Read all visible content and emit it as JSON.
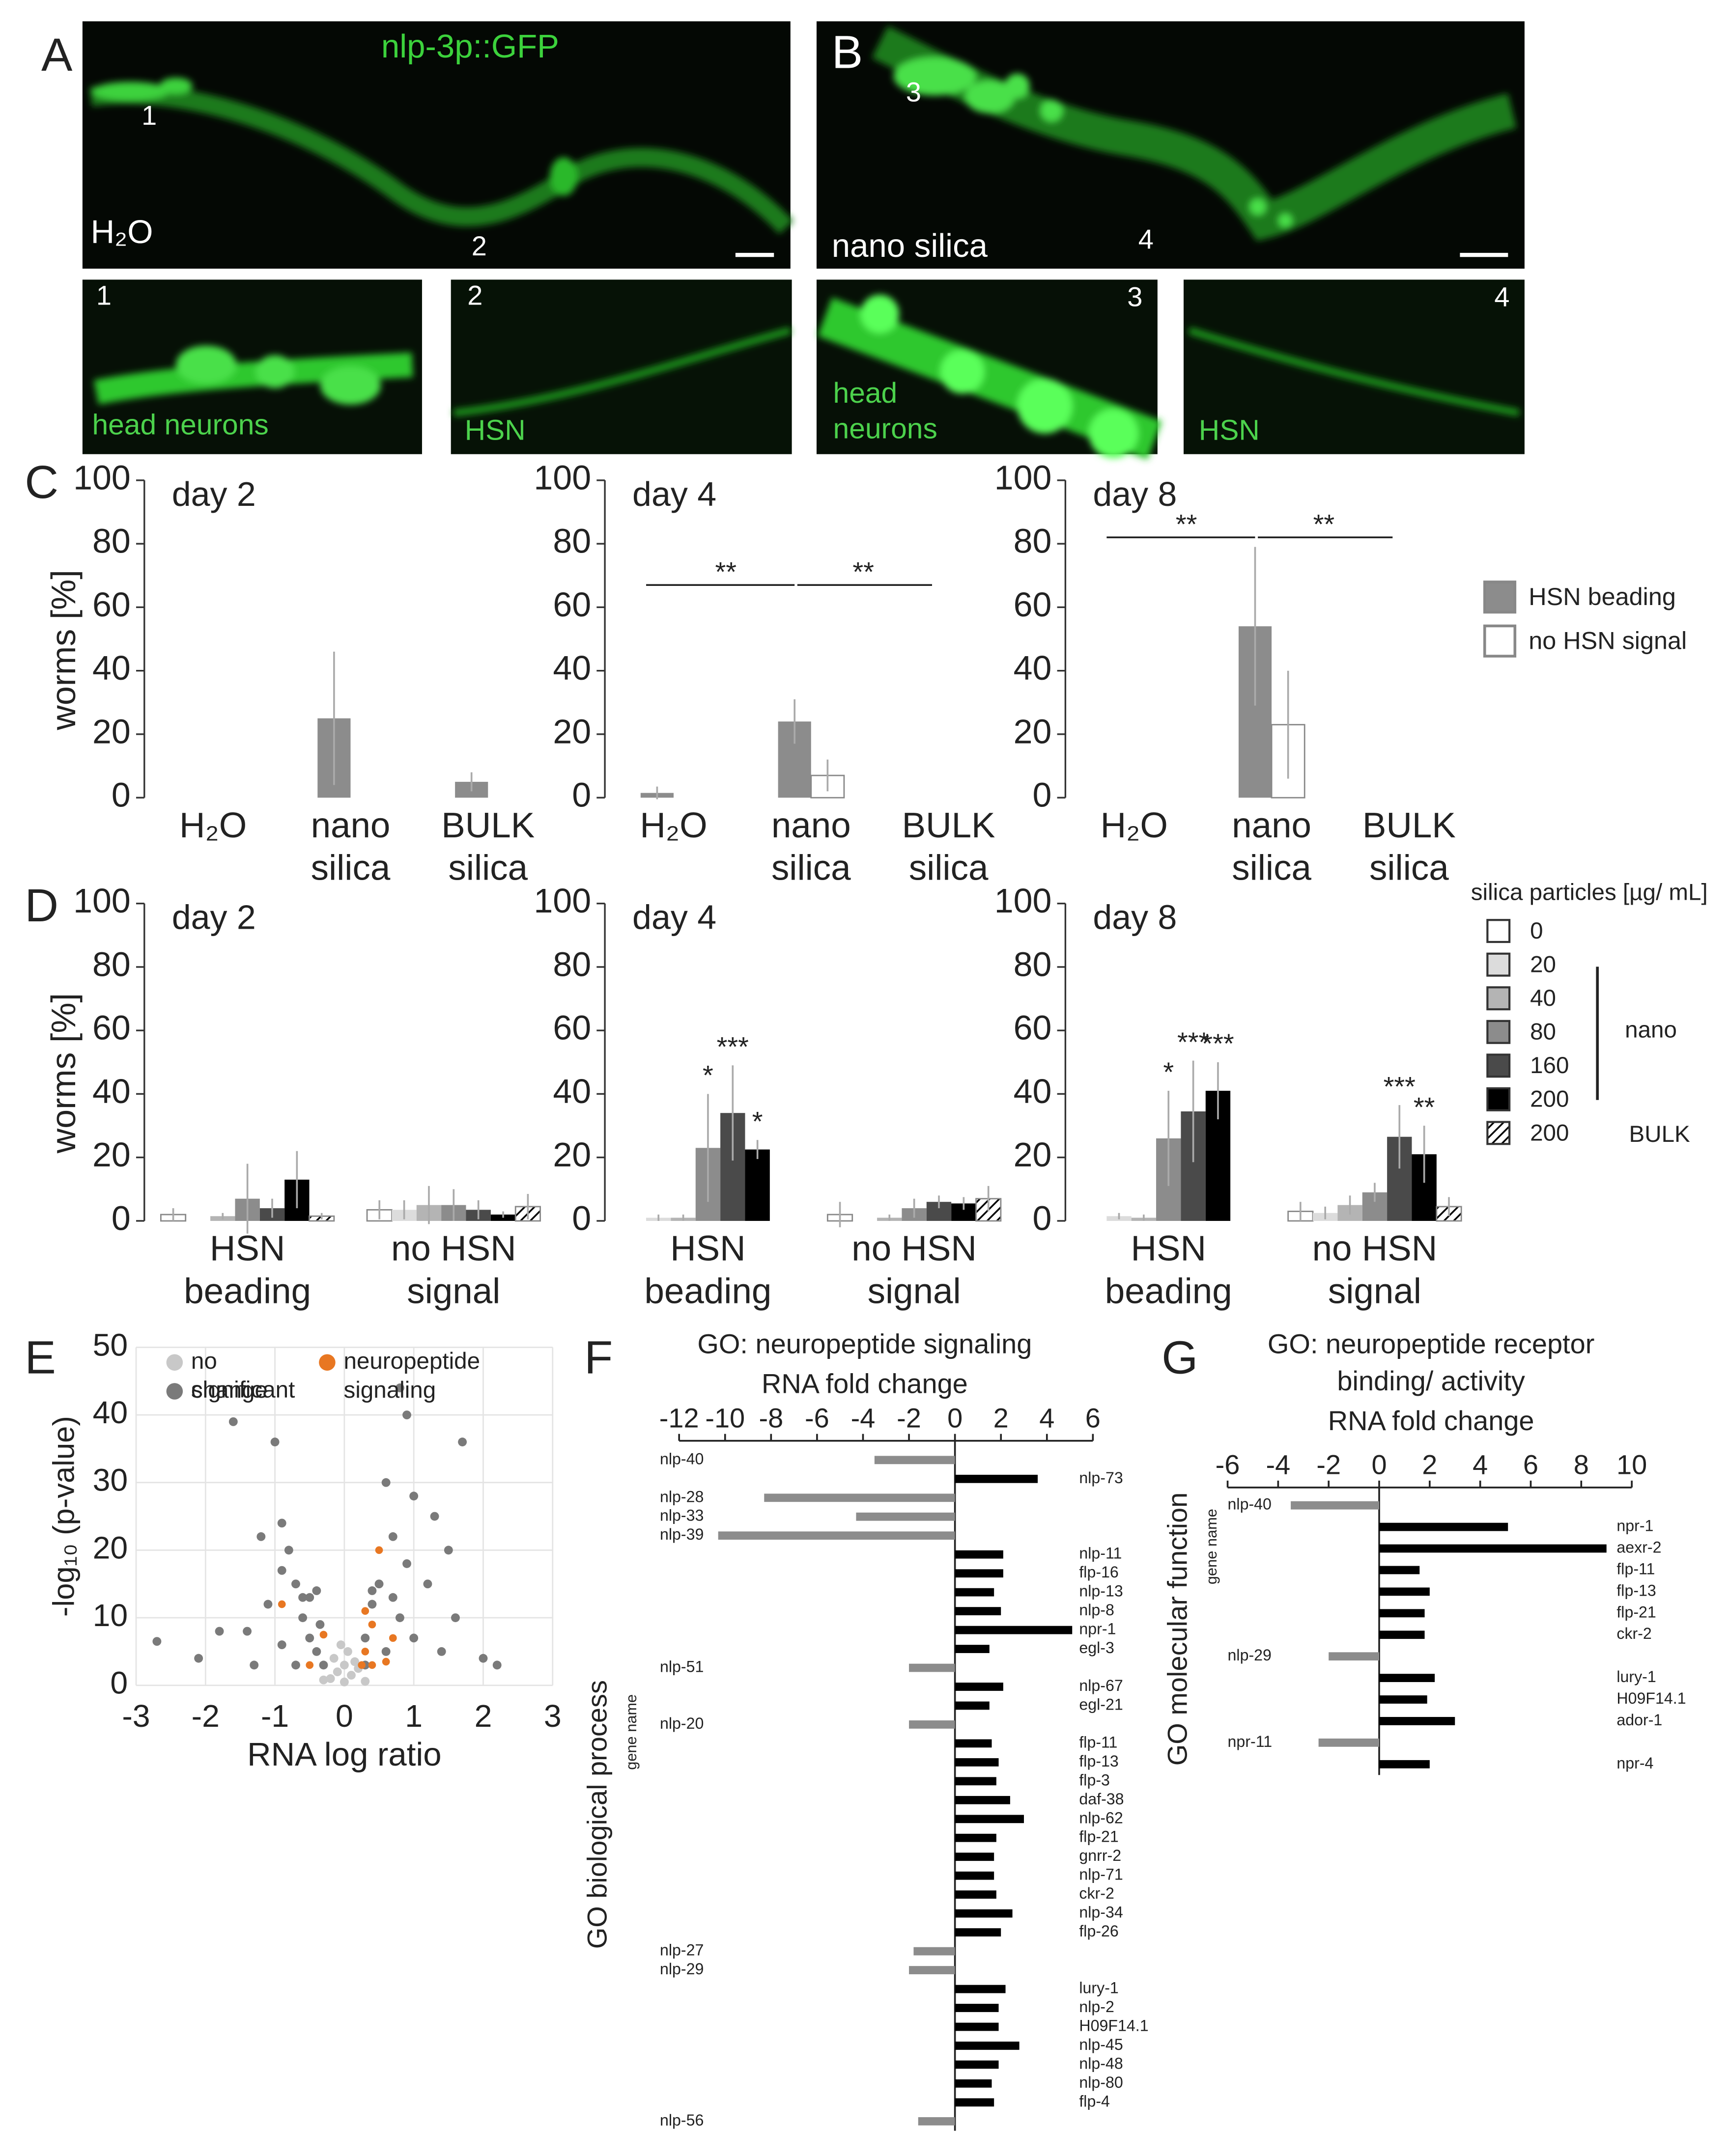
{
  "figure_panels": [
    {
      "label": "A",
      "caption": "nlp-3p::GFP",
      "condition": "H₂O",
      "markers": [
        "1",
        "2"
      ],
      "insets": [
        {
          "number": "1",
          "label": [
            "head neurons"
          ]
        },
        {
          "number": "2",
          "label": [
            "HSN"
          ]
        }
      ]
    },
    {
      "label": "B",
      "condition": "nano silica",
      "markers": [
        "3",
        "4"
      ],
      "insets": [
        {
          "number": "3",
          "label": [
            "head",
            "neurons"
          ]
        },
        {
          "number": "4",
          "label": [
            "HSN"
          ]
        }
      ]
    }
  ],
  "chart_data": [
    {
      "type": "bar",
      "label": "C",
      "ylabel": "worms [%]",
      "ylim": [
        0,
        100
      ],
      "yticks": [
        0,
        20,
        40,
        60,
        80,
        100
      ],
      "categories": [
        [
          "H₂O"
        ],
        [
          "nano",
          "silica"
        ],
        [
          "BULK",
          "silica"
        ]
      ],
      "legend": [
        {
          "name": "HSN beading",
          "color": "#8c8c8c"
        },
        {
          "name": "no HSN signal",
          "color": "#ffffff"
        }
      ],
      "panels": [
        {
          "title": "day 2",
          "series": [
            {
              "values": [
                0,
                25,
                5
              ],
              "errors": [
                0,
                21,
                3
              ]
            },
            {
              "values": [
                0,
                0,
                0
              ],
              "errors": [
                0,
                0,
                0
              ]
            }
          ]
        },
        {
          "title": "day 4",
          "series": [
            {
              "values": [
                1.5,
                24,
                0
              ],
              "errors": [
                2,
                7,
                0
              ]
            },
            {
              "values": [
                0,
                7,
                0
              ],
              "errors": [
                0,
                5,
                0
              ]
            }
          ],
          "brackets": [
            {
              "text": "**",
              "from": 0,
              "to": 1,
              "y": 67
            },
            {
              "text": "**",
              "from": 1,
              "to": 2,
              "y": 67
            }
          ]
        },
        {
          "title": "day 8",
          "series": [
            {
              "values": [
                0,
                54,
                0
              ],
              "errors": [
                0,
                25,
                0
              ]
            },
            {
              "values": [
                0,
                23,
                0
              ],
              "errors": [
                0,
                17,
                0
              ]
            }
          ],
          "brackets": [
            {
              "text": "**",
              "from": 0,
              "to": 1,
              "y": 82
            },
            {
              "text": "**",
              "from": 1,
              "to": 2,
              "y": 82
            }
          ]
        }
      ]
    },
    {
      "type": "bar",
      "label": "D",
      "ylabel": "worms [%]",
      "ylim": [
        0,
        100
      ],
      "yticks": [
        0,
        20,
        40,
        60,
        80,
        100
      ],
      "categories": [
        [
          "HSN",
          "beading"
        ],
        [
          "no HSN",
          "signal"
        ]
      ],
      "legend_title": "silica particles [µg/ mL]",
      "legend": [
        {
          "name": "0",
          "color": "#ffffff"
        },
        {
          "name": "20",
          "color": "#dcdcdc"
        },
        {
          "name": "40",
          "color": "#b4b4b4"
        },
        {
          "name": "80",
          "color": "#8c8c8c"
        },
        {
          "name": "160",
          "color": "#4a4a4a"
        },
        {
          "name": "200",
          "color": "#000000"
        },
        {
          "name": "200",
          "color": "hatch"
        }
      ],
      "legend_groups": [
        "nano",
        "BULK"
      ],
      "panels": [
        {
          "title": "day 2",
          "series": [
            {
              "values": [
                2,
                3.5
              ],
              "errors": [
                2,
                3
              ]
            },
            {
              "values": [
                0,
                3.5
              ],
              "errors": [
                0,
                3
              ]
            },
            {
              "values": [
                1.5,
                5
              ],
              "errors": [
                1,
                6
              ]
            },
            {
              "values": [
                7,
                5
              ],
              "errors": [
                11,
                5
              ]
            },
            {
              "values": [
                4,
                3.5
              ],
              "errors": [
                3,
                3
              ]
            },
            {
              "values": [
                13,
                2
              ],
              "errors": [
                9,
                1
              ]
            },
            {
              "values": [
                1.5,
                4.5
              ],
              "errors": [
                1,
                4
              ]
            }
          ]
        },
        {
          "title": "day 4",
          "series": [
            {
              "values": [
                0,
                2
              ],
              "errors": [
                0,
                4
              ]
            },
            {
              "values": [
                1,
                0
              ],
              "errors": [
                1,
                0
              ]
            },
            {
              "values": [
                1,
                1
              ],
              "errors": [
                1,
                1
              ]
            },
            {
              "values": [
                23,
                4
              ],
              "errors": [
                17,
                3
              ]
            },
            {
              "values": [
                34,
                6
              ],
              "errors": [
                15,
                2
              ]
            },
            {
              "values": [
                22.5,
                5.5
              ],
              "errors": [
                3,
                2
              ]
            },
            {
              "values": [
                0,
                7
              ],
              "errors": [
                0,
                4
              ]
            }
          ],
          "stars": [
            {
              "text": "*",
              "category": 0,
              "series": 3
            },
            {
              "text": "***",
              "category": 0,
              "series": 4
            },
            {
              "text": "*",
              "category": 0,
              "series": 5
            }
          ]
        },
        {
          "title": "day 8",
          "series": [
            {
              "values": [
                0,
                3
              ],
              "errors": [
                0,
                3
              ]
            },
            {
              "values": [
                1.5,
                2.5
              ],
              "errors": [
                1,
                2
              ]
            },
            {
              "values": [
                1,
                5
              ],
              "errors": [
                1,
                3
              ]
            },
            {
              "values": [
                26,
                9
              ],
              "errors": [
                15,
                3
              ]
            },
            {
              "values": [
                34.5,
                26.5
              ],
              "errors": [
                16,
                10
              ]
            },
            {
              "values": [
                41,
                21
              ],
              "errors": [
                9,
                9
              ]
            },
            {
              "values": [
                0,
                4.5
              ],
              "errors": [
                0,
                3
              ]
            }
          ],
          "stars": [
            {
              "text": "*",
              "category": 0,
              "series": 3
            },
            {
              "text": "***",
              "category": 0,
              "series": 4
            },
            {
              "text": "***",
              "category": 0,
              "series": 5
            },
            {
              "text": "***",
              "category": 1,
              "series": 4
            },
            {
              "text": "**",
              "category": 1,
              "series": 5
            }
          ]
        }
      ]
    },
    {
      "type": "scatter",
      "label": "E",
      "xlabel": "RNA log ratio",
      "ylabel": "-log₁₀ (p-value)",
      "xlim": [
        -3,
        3
      ],
      "xticks": [
        -3,
        -2,
        -1,
        0,
        1,
        2,
        3
      ],
      "ylim": [
        0,
        50
      ],
      "yticks": [
        0,
        10,
        20,
        30,
        40,
        50
      ],
      "grid": true,
      "series": [
        {
          "name": "no change",
          "color": "#c8c8c8",
          "x": [
            -0.2,
            -0.1,
            0,
            0.1,
            0.2,
            -0.3,
            0.3,
            0,
            -0.15,
            0.15,
            0.05,
            -0.05
          ],
          "values": [
            1,
            2,
            0.5,
            1.5,
            2.5,
            0.8,
            0.6,
            3,
            4,
            3.5,
            5,
            6
          ]
        },
        {
          "name": "significant",
          "color": "#7a7a7a",
          "x": [
            -1.6,
            -1.0,
            -0.9,
            -1.2,
            -0.8,
            -0.7,
            -1.1,
            -0.6,
            -1.4,
            -0.5,
            -0.9,
            -0.4,
            -2.1,
            -1.8,
            -0.3,
            -0.7,
            -1.3,
            -0.5,
            -0.35,
            -0.9,
            0.9,
            0.8,
            1.7,
            0.6,
            1.0,
            1.3,
            0.7,
            1.5,
            0.9,
            0.5,
            1.2,
            0.4,
            0.8,
            1.6,
            0.3,
            1.0,
            0.6,
            1.4,
            2.0,
            0.3,
            2.2,
            -2.7,
            -0.4,
            0.4,
            -0.6,
            0.7
          ],
          "values": [
            39,
            36,
            24,
            22,
            20,
            15,
            12,
            10,
            8,
            7,
            6,
            5,
            4,
            8,
            3,
            3,
            3,
            13,
            9,
            17,
            40,
            44,
            36,
            30,
            28,
            25,
            22,
            20,
            18,
            15,
            15,
            12,
            10,
            10,
            7,
            7,
            5,
            5,
            4,
            3,
            3,
            6.5,
            14,
            14,
            13,
            13
          ]
        },
        {
          "name": "neuropeptide signaling",
          "color": "#e87722",
          "x": [
            -0.9,
            -0.3,
            -0.5,
            0.4,
            0.5,
            0.3,
            0.25,
            0.6,
            0.7,
            0.3,
            0.4
          ],
          "values": [
            12,
            7.5,
            3,
            9,
            20,
            5,
            3,
            3.5,
            7,
            11,
            3
          ]
        }
      ]
    },
    {
      "type": "hbar",
      "label": "F",
      "title": [
        "GO: neuropeptide signaling"
      ],
      "xlabel": "RNA fold change",
      "ylabel": "GO biological process",
      "ylabel_sub": "gene name",
      "xlim": [
        -12,
        6
      ],
      "xticks": [
        -12,
        -10,
        -8,
        -6,
        -4,
        -2,
        0,
        2,
        4,
        6
      ],
      "color": "#000000",
      "negative_color": "#8c8c8c",
      "categories": [
        "nlp-40",
        "nlp-73",
        "nlp-28",
        "nlp-33",
        "nlp-39",
        "nlp-11",
        "flp-16",
        "nlp-13",
        "nlp-8",
        "npr-1",
        "egl-3",
        "nlp-51",
        "nlp-67",
        "egl-21",
        "nlp-20",
        "flp-11",
        "flp-13",
        "flp-3",
        "daf-38",
        "nlp-62",
        "flp-21",
        "gnrr-2",
        "nlp-71",
        "ckr-2",
        "nlp-34",
        "flp-26",
        "nlp-27",
        "nlp-29",
        "lury-1",
        "nlp-2",
        "H09F14.1",
        "nlp-45",
        "nlp-48",
        "nlp-80",
        "flp-4",
        "nlp-56"
      ],
      "values": [
        -3.5,
        3.6,
        -8.3,
        -4.3,
        -10.3,
        2.1,
        2.1,
        1.7,
        2.0,
        5.1,
        1.5,
        -2.0,
        2.1,
        1.5,
        -2.0,
        1.6,
        1.9,
        1.8,
        2.4,
        3.0,
        1.8,
        1.7,
        1.7,
        1.8,
        2.5,
        2.0,
        -1.8,
        -2.0,
        2.2,
        1.9,
        1.9,
        2.8,
        1.9,
        1.6,
        1.7,
        -1.6
      ]
    },
    {
      "type": "hbar",
      "label": "G",
      "title": [
        "GO: neuropeptide receptor",
        "binding/ activity"
      ],
      "xlabel": "RNA fold change",
      "ylabel": "GO molecular function",
      "ylabel_sub": "gene name",
      "xlim": [
        -6,
        10
      ],
      "xticks": [
        -6,
        -4,
        -2,
        0,
        2,
        4,
        6,
        8,
        10
      ],
      "color": "#000000",
      "negative_color": "#8c8c8c",
      "categories": [
        "nlp-40",
        "npr-1",
        "aexr-2",
        "flp-11",
        "flp-13",
        "flp-21",
        "ckr-2",
        "nlp-29",
        "lury-1",
        "H09F14.1",
        "ador-1",
        "npr-11",
        "npr-4"
      ],
      "values": [
        -3.5,
        5.1,
        9.0,
        1.6,
        2.0,
        1.8,
        1.8,
        -2.0,
        2.2,
        1.9,
        3.0,
        -2.4,
        2.0
      ]
    }
  ]
}
